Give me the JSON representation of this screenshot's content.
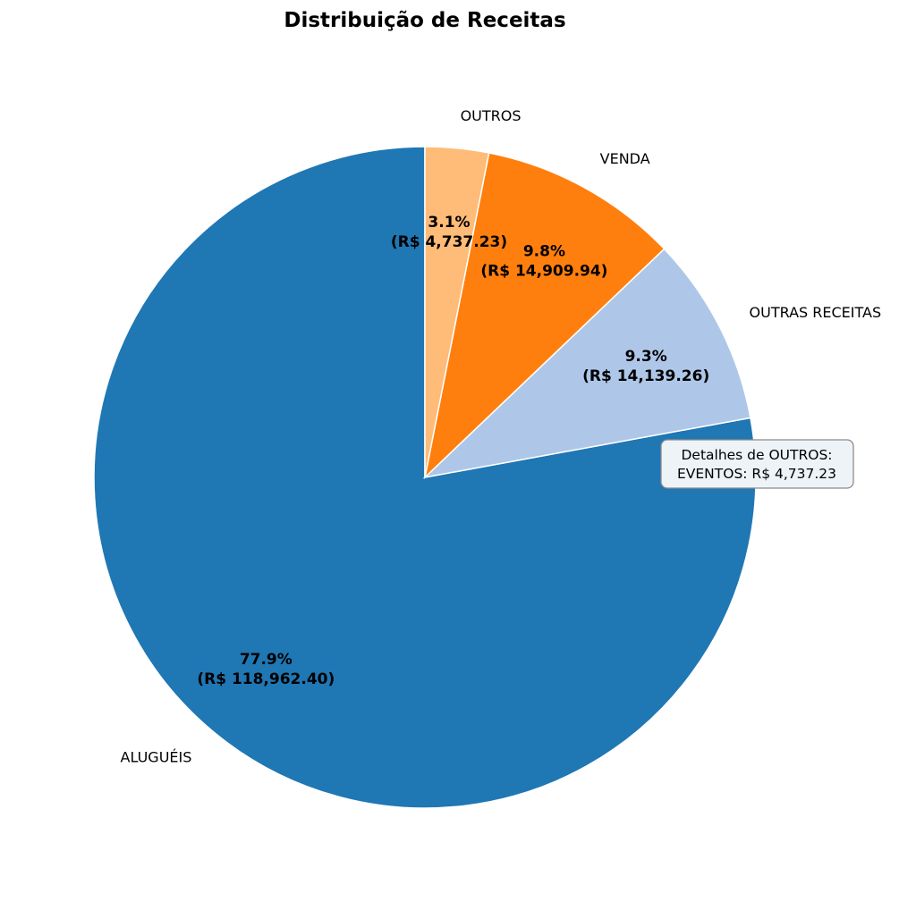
{
  "chart_data": {
    "type": "pie",
    "title": "Distribuição de Receitas",
    "start_angle_deg": 90,
    "direction": "counterclockwise",
    "slices": [
      {
        "label": "ALUGUÉIS",
        "value": 118962.4,
        "percent_label": "77.9%",
        "value_label": "(R$ 118,962.40)",
        "color": "#1f77b4"
      },
      {
        "label": "OUTRAS RECEITAS",
        "value": 14139.26,
        "percent_label": "9.3%",
        "value_label": "(R$ 14,139.26)",
        "color": "#aec7e8"
      },
      {
        "label": "VENDA",
        "value": 14909.94,
        "percent_label": "9.8%",
        "value_label": "(R$ 14,909.94)",
        "color": "#ff7f0e"
      },
      {
        "label": "OUTROS",
        "value": 4737.23,
        "percent_label": "3.1%",
        "value_label": "(R$ 4,737.23)",
        "color": "#ffbb78"
      }
    ],
    "annotation": {
      "lines": [
        "Detalhes de OUTROS:",
        "EVENTOS: R$ 4,737.23"
      ]
    },
    "edge_color": "#ffffff",
    "legend": "none"
  }
}
